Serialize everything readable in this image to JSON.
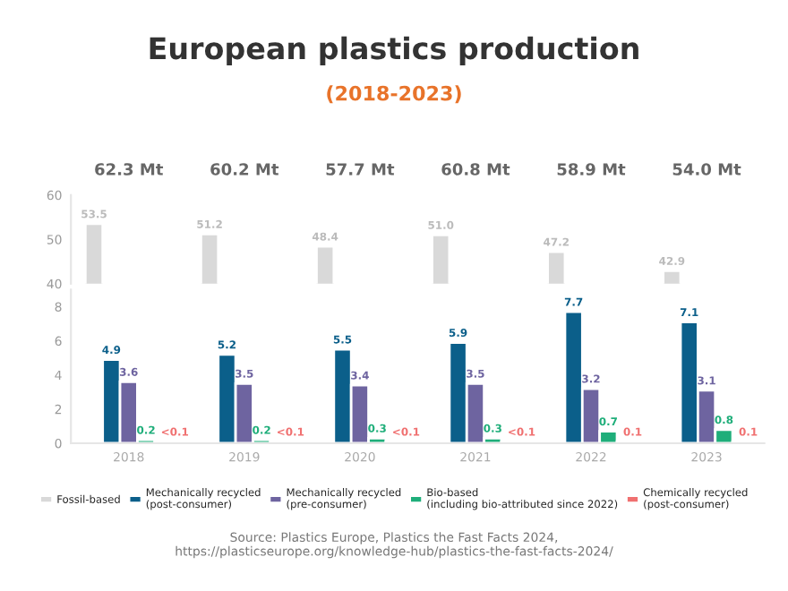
{
  "chart_data": [
    {
      "type": "bar",
      "title": "European plastics production",
      "subtitle": "(2018-2023)",
      "categories": [
        "2018",
        "2019",
        "2020",
        "2021",
        "2022",
        "2023"
      ],
      "series": [
        {
          "color": "#d9d9d9",
          "values": [
            53.5,
            51.2,
            48.4,
            51.0,
            47.2,
            42.9
          ],
          "value_labels": [
            "53.5",
            "51.2",
            "48.4",
            "51.0",
            "47.2",
            "42.9"
          ]
        },
        {
          "color": "#0b5f8a",
          "values": [
            null,
            null,
            null,
            null,
            null,
            null
          ]
        },
        {
          "color": "#6e64a0",
          "values": [
            null,
            null,
            null,
            null,
            null,
            null
          ]
        },
        {
          "color": "#1fae7a",
          "values": [
            null,
            null,
            null,
            null,
            null,
            null
          ]
        },
        {
          "color": "#f07070",
          "values": [
            null,
            null,
            null,
            null,
            null,
            null
          ]
        }
      ],
      "annotations": [
        "62.3 Mt",
        "60.2 Mt",
        "57.7 Mt",
        "60.8 Mt",
        "58.9 Mt",
        "54.0 Mt"
      ],
      "ylim": [
        40,
        60
      ],
      "yticks": [
        40,
        50,
        60
      ],
      "tick_labels": "y",
      "grid": false
    },
    {
      "type": "bar",
      "categories": [
        "2018",
        "2019",
        "2020",
        "2021",
        "2022",
        "2023"
      ],
      "series": [
        {
          "name": "Fossil-based",
          "color": "#d9d9d9",
          "values": [
            null,
            null,
            null,
            null,
            null,
            null
          ]
        },
        {
          "name": "Mechanically recycled (post-consumer)",
          "color": "#0b5f8a",
          "values": [
            4.9,
            5.2,
            5.5,
            5.9,
            7.7,
            7.1
          ],
          "value_labels": [
            "4.9",
            "5.2",
            "5.5",
            "5.9",
            "7.7",
            "7.1"
          ]
        },
        {
          "name": "Mechanically recycled (pre-consumer)",
          "color": "#6e64a0",
          "values": [
            3.6,
            3.5,
            3.4,
            3.5,
            3.2,
            3.1
          ],
          "value_labels": [
            "3.6",
            "3.5",
            "3.4",
            "3.5",
            "3.2",
            "3.1"
          ]
        },
        {
          "name": "Bio-based (including bio-attributed since 2022)",
          "color": "#1fae7a",
          "values": [
            0.2,
            0.2,
            0.3,
            0.3,
            0.7,
            0.8
          ],
          "value_labels": [
            "0.2",
            "0.2",
            "0.3",
            "0.3",
            "0.7",
            "0.8"
          ]
        },
        {
          "name": "Chemically recycled (post-consumer)",
          "color": "#f07070",
          "values": [
            0.1,
            0.1,
            0.1,
            0.1,
            0.1,
            0.1
          ],
          "value_labels": [
            "<0.1",
            "<0.1",
            "<0.1",
            "<0.1",
            "0.1",
            "0.1"
          ]
        }
      ],
      "ylim": [
        0,
        9
      ],
      "yticks": [
        0,
        2,
        4,
        6,
        8
      ],
      "grid": false,
      "legend": "bottom",
      "annotations": [
        "Source: Plastics Europe, Plastics the Fast Facts 2024,\nhttps://plasticseurope.org/knowledge-hub/plastics-the-fast-facts-2024/"
      ]
    }
  ]
}
